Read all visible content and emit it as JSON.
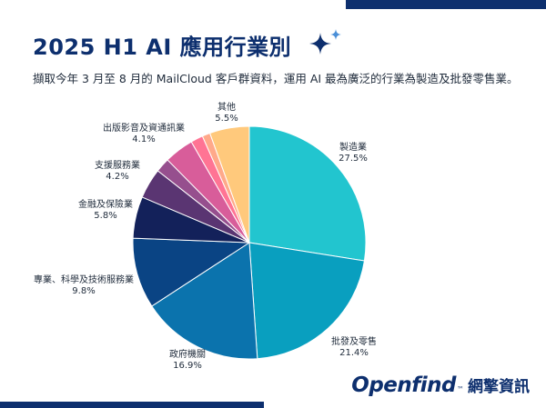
{
  "header": {
    "title": "2025 H1 AI 應用行業別",
    "subtitle": "擷取今年 3 月至 8 月的 MailCloud 客戶群資料，運用 AI 最為廣泛的行業為製造及批發零售業。"
  },
  "logo": {
    "brand": "Openfind",
    "tm": "™",
    "company": "網擎資訊"
  },
  "chart_data": {
    "type": "pie",
    "slices": [
      {
        "label": "製造業",
        "value": 27.5,
        "display": "27.5%",
        "color": "#22c5cf"
      },
      {
        "label": "批發及零售",
        "value": 21.4,
        "display": "21.4%",
        "color": "#099fbf"
      },
      {
        "label": "政府機關",
        "value": 16.9,
        "display": "16.9%",
        "color": "#0b73ad"
      },
      {
        "label": "專業、科學及技術服務業",
        "value": 9.8,
        "display": "9.8%",
        "color": "#0a4484"
      },
      {
        "label": "金融及保險業",
        "value": 5.8,
        "display": "5.8%",
        "color": "#13215a"
      },
      {
        "label": "支援服務業",
        "value": 4.2,
        "display": "4.2%",
        "color": "#5a3572"
      },
      {
        "label": "",
        "value": 2.0,
        "display": "",
        "color": "#964f8e"
      },
      {
        "label": "出版影音及資通訊業",
        "value": 4.1,
        "display": "4.1%",
        "color": "#d85d9a"
      },
      {
        "label": "",
        "value": 1.7,
        "display": "",
        "color": "#ff7494"
      },
      {
        "label": "",
        "value": 1.1,
        "display": "",
        "color": "#ffa98a"
      },
      {
        "label": "其他",
        "value": 5.5,
        "display": "5.5%",
        "color": "#ffc97c"
      }
    ]
  },
  "colors": {
    "brand": "#0d2f6e",
    "sparkle": "#0d2f6e",
    "sparkle_small": "#4a8fd8"
  }
}
